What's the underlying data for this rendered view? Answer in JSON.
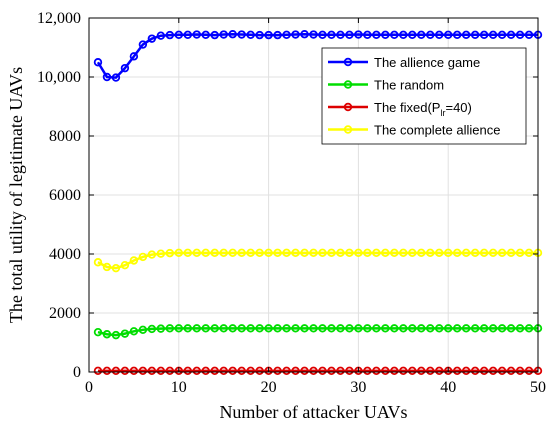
{
  "chart_data": {
    "type": "line",
    "xlabel": "Number of attacker UAVs",
    "ylabel": "The total utility of legitimate UAVs",
    "xlim": [
      0,
      50
    ],
    "ylim": [
      0,
      12000
    ],
    "xticks": [
      "0",
      "10",
      "20",
      "30",
      "40",
      "50"
    ],
    "yticks": [
      "0",
      "2000",
      "4000",
      "6000",
      "8000",
      "10,000",
      "12,000"
    ],
    "grid": true,
    "legend_position": "top-right",
    "x": [
      1,
      2,
      3,
      4,
      5,
      6,
      7,
      8,
      9,
      10,
      11,
      12,
      13,
      14,
      15,
      16,
      17,
      18,
      19,
      20,
      21,
      22,
      23,
      24,
      25,
      26,
      27,
      28,
      29,
      30,
      31,
      32,
      33,
      34,
      35,
      36,
      37,
      38,
      39,
      40,
      41,
      42,
      43,
      44,
      45,
      46,
      47,
      48,
      49,
      50
    ],
    "series": [
      {
        "name": "The allience game",
        "color": "#0000ff",
        "values": [
          10500,
          10000,
          9980,
          10300,
          10700,
          11100,
          11300,
          11400,
          11420,
          11430,
          11430,
          11440,
          11430,
          11420,
          11440,
          11450,
          11440,
          11430,
          11420,
          11420,
          11420,
          11430,
          11440,
          11450,
          11440,
          11430,
          11430,
          11430,
          11430,
          11440,
          11430,
          11430,
          11430,
          11430,
          11430,
          11430,
          11430,
          11430,
          11430,
          11430,
          11430,
          11430,
          11430,
          11430,
          11430,
          11430,
          11430,
          11430,
          11430,
          11430
        ]
      },
      {
        "name": "The random",
        "color": "#00dd00",
        "values": [
          1350,
          1280,
          1250,
          1300,
          1380,
          1430,
          1460,
          1470,
          1480,
          1480,
          1480,
          1480,
          1480,
          1480,
          1480,
          1480,
          1480,
          1480,
          1480,
          1480,
          1480,
          1480,
          1480,
          1480,
          1480,
          1480,
          1480,
          1480,
          1480,
          1480,
          1480,
          1480,
          1480,
          1480,
          1480,
          1480,
          1480,
          1480,
          1480,
          1480,
          1480,
          1480,
          1480,
          1480,
          1480,
          1480,
          1480,
          1480,
          1480,
          1480
        ]
      },
      {
        "name": "The fixed",
        "name_sub": "lr",
        "name_pre": "The fixed(P",
        "name_post": "=40)",
        "color": "#dd0000",
        "values": [
          40,
          40,
          40,
          40,
          40,
          40,
          40,
          40,
          40,
          40,
          40,
          40,
          40,
          40,
          40,
          40,
          40,
          40,
          40,
          40,
          40,
          40,
          40,
          40,
          40,
          40,
          40,
          40,
          40,
          40,
          40,
          40,
          40,
          40,
          40,
          40,
          40,
          40,
          40,
          40,
          40,
          40,
          40,
          40,
          40,
          40,
          40,
          40,
          40,
          40
        ]
      },
      {
        "name": "The complete allience",
        "color": "#ffff00",
        "values": [
          3720,
          3560,
          3520,
          3620,
          3780,
          3900,
          3980,
          4010,
          4030,
          4040,
          4040,
          4040,
          4040,
          4040,
          4040,
          4040,
          4040,
          4040,
          4040,
          4040,
          4040,
          4040,
          4040,
          4040,
          4040,
          4040,
          4040,
          4040,
          4040,
          4040,
          4040,
          4040,
          4040,
          4040,
          4040,
          4040,
          4040,
          4040,
          4040,
          4040,
          4040,
          4040,
          4040,
          4040,
          4040,
          4040,
          4040,
          4040,
          4040,
          4040
        ]
      }
    ]
  }
}
